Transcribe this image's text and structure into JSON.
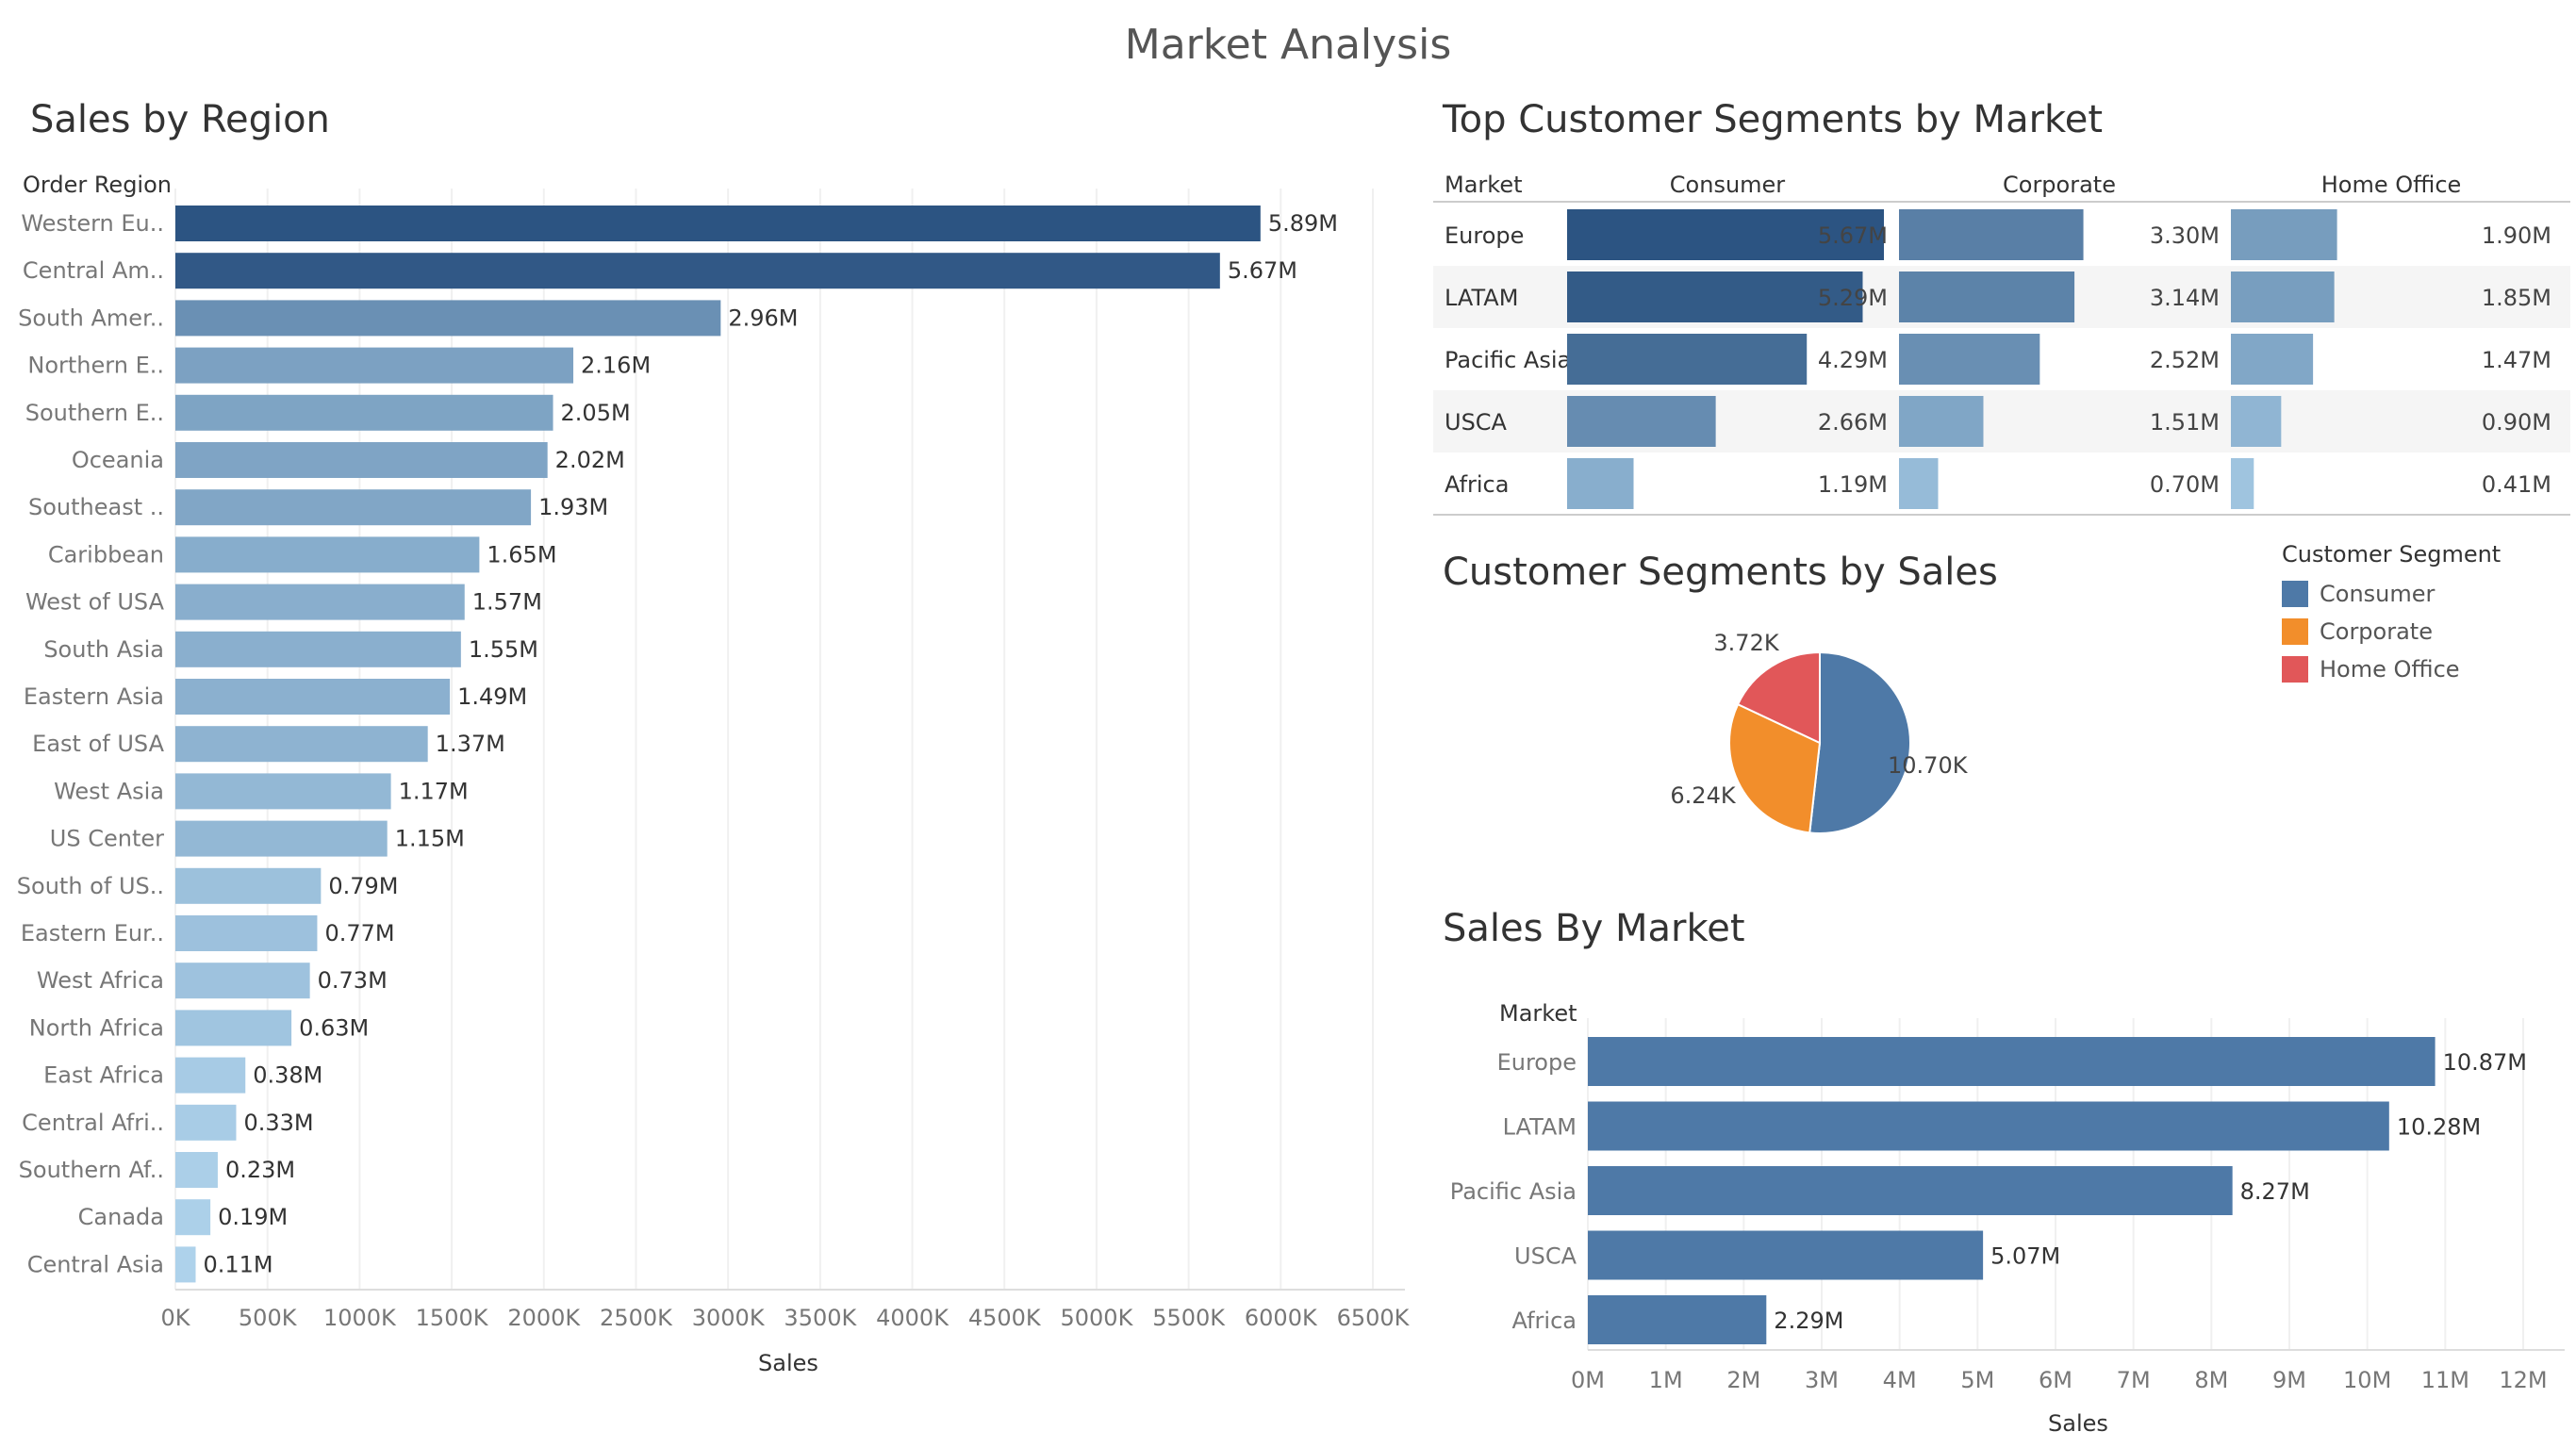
{
  "dashboard_title": "Market Analysis",
  "chart_data": [
    {
      "type": "bar",
      "orientation": "horizontal",
      "title": "Sales by Region",
      "row_header": "Order Region",
      "xlabel": "Sales",
      "xlim": [
        0,
        6500000
      ],
      "xticks": [
        "0K",
        "500K",
        "1000K",
        "1500K",
        "2000K",
        "2500K",
        "3000K",
        "3500K",
        "4000K",
        "4500K",
        "5000K",
        "5500K",
        "6000K",
        "6500K"
      ],
      "categories": [
        "Western Eu..",
        "Central Am..",
        "South Amer..",
        "Northern E..",
        "Southern E..",
        "Oceania",
        "Southeast ..",
        "Caribbean",
        "West of USA",
        "South Asia",
        "Eastern Asia",
        "East of USA",
        "West Asia",
        "US Center",
        "South of  US..",
        "Eastern Eur..",
        "West Africa",
        "North Africa",
        "East Africa",
        "Central Afri..",
        "Southern Af..",
        "Canada",
        "Central Asia"
      ],
      "values": [
        5890000,
        5670000,
        2960000,
        2160000,
        2050000,
        2020000,
        1930000,
        1650000,
        1570000,
        1550000,
        1490000,
        1370000,
        1170000,
        1150000,
        790000,
        770000,
        730000,
        630000,
        380000,
        330000,
        230000,
        190000,
        110000
      ],
      "labels": [
        "5.89M",
        "5.67M",
        "2.96M",
        "2.16M",
        "2.05M",
        "2.02M",
        "1.93M",
        "1.65M",
        "1.57M",
        "1.55M",
        "1.49M",
        "1.37M",
        "1.17M",
        "1.15M",
        "0.79M",
        "0.77M",
        "0.73M",
        "0.63M",
        "0.38M",
        "0.33M",
        "0.23M",
        "0.19M",
        "0.11M"
      ]
    },
    {
      "type": "table",
      "title": "Top Customer Segments by Market",
      "row_header": "Market",
      "columns": [
        "Consumer",
        "Corporate",
        "Home Office"
      ],
      "rows": [
        "Europe",
        "LATAM",
        "Pacific Asia",
        "USCA",
        "Africa"
      ],
      "values": [
        [
          5670000,
          3300000,
          1900000
        ],
        [
          5290000,
          3140000,
          1850000
        ],
        [
          4290000,
          2520000,
          1470000
        ],
        [
          2660000,
          1510000,
          900000
        ],
        [
          1190000,
          700000,
          410000
        ]
      ],
      "labels": [
        [
          "5.67M",
          "3.30M",
          "1.90M"
        ],
        [
          "5.29M",
          "3.14M",
          "1.85M"
        ],
        [
          "4.29M",
          "2.52M",
          "1.47M"
        ],
        [
          "2.66M",
          "1.51M",
          "0.90M"
        ],
        [
          "1.19M",
          "0.70M",
          "0.41M"
        ]
      ]
    },
    {
      "type": "pie",
      "title": "Customer Segments by Sales",
      "legend_title": "Customer Segment",
      "legend_position": "right",
      "categories": [
        "Consumer",
        "Corporate",
        "Home Office"
      ],
      "values": [
        10700,
        6240,
        3720
      ],
      "labels": [
        "10.70K",
        "6.24K",
        "3.72K"
      ],
      "colors": [
        "#4e79a7",
        "#f28e2b",
        "#e15759"
      ]
    },
    {
      "type": "bar",
      "orientation": "horizontal",
      "title": "Sales By Market",
      "row_header": "Market",
      "xlabel": "Sales",
      "xlim": [
        0,
        12000000
      ],
      "xticks": [
        "0M",
        "1M",
        "2M",
        "3M",
        "4M",
        "5M",
        "6M",
        "7M",
        "8M",
        "9M",
        "10M",
        "11M",
        "12M"
      ],
      "categories": [
        "Europe",
        "LATAM",
        "Pacific Asia",
        "USCA",
        "Africa"
      ],
      "values": [
        10870000,
        10280000,
        8270000,
        5070000,
        2290000
      ],
      "labels": [
        "10.87M",
        "10.28M",
        "8.27M",
        "5.07M",
        "2.29M"
      ],
      "color": "#4e79a7"
    }
  ]
}
